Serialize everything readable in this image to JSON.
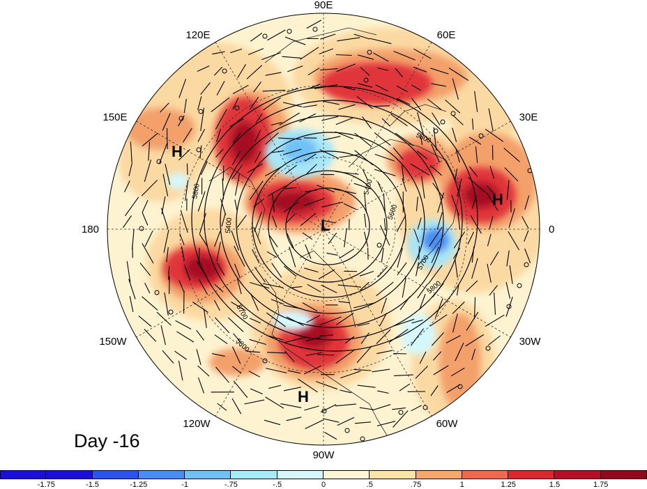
{
  "map": {
    "type": "polar stereographic (Northern Hemisphere)",
    "longitude_labels": [
      "90E",
      "60E",
      "30E",
      "0",
      "30W",
      "60W",
      "90W",
      "120W",
      "150W",
      "180",
      "150E",
      "120E"
    ],
    "pressure_centers": [
      "H",
      "H",
      "H",
      "L"
    ],
    "contour_labels": [
      "5800",
      "5800",
      "5800",
      "5800",
      "5700",
      "5700",
      "5600",
      "5400",
      "5400"
    ]
  },
  "panel_label": "Day -16",
  "colorbar": {
    "colors": [
      "#1a0fd6",
      "#2a55e8",
      "#4a8ef2",
      "#6fc1f6",
      "#a8ebfb",
      "#d5f8fd",
      "#fdf6d6",
      "#fce2a6",
      "#f7a66c",
      "#ec6a4f",
      "#d9282e",
      "#b21026",
      "#8e0a1c"
    ],
    "tick_labels": [
      "-1.75",
      "-1.5",
      "-1.25",
      "-1",
      "-.75",
      "-.5",
      "0",
      ".5",
      ".75",
      "1",
      "1.25",
      "1.5",
      "1.75"
    ]
  },
  "colors": {
    "background": "#fffae0",
    "contour": "#000000"
  }
}
